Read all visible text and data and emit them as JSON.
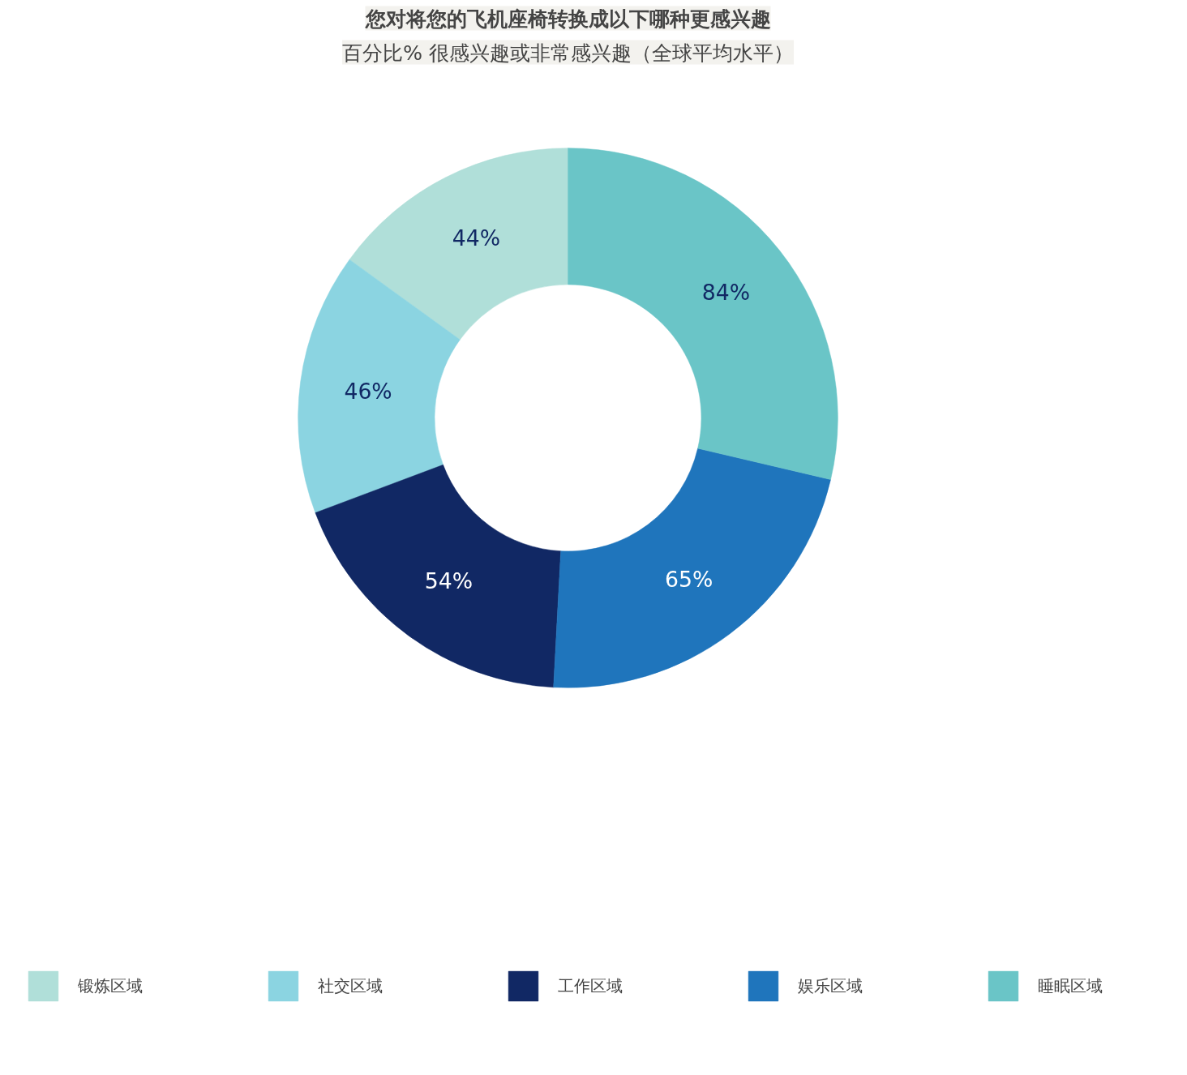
{
  "chart_data": {
    "type": "donut",
    "title": "您对将您的飞机座椅转换成以下哪种更感兴趣",
    "subtitle": "百分比% 很感兴趣或非常感兴趣（全球平均水平）",
    "categories": [
      "锻炼区域",
      "社交区域",
      "工作区域",
      "娱乐区域",
      "睡眠区域"
    ],
    "values": [
      44,
      46,
      54,
      65,
      84
    ],
    "colors": [
      "#b0dfd9",
      "#8bd4e1",
      "#112864",
      "#1f75bc",
      "#6ac5c7"
    ],
    "value_labels": [
      "44%",
      "46%",
      "54%",
      "65%",
      "84%"
    ],
    "legend": "bottom"
  }
}
